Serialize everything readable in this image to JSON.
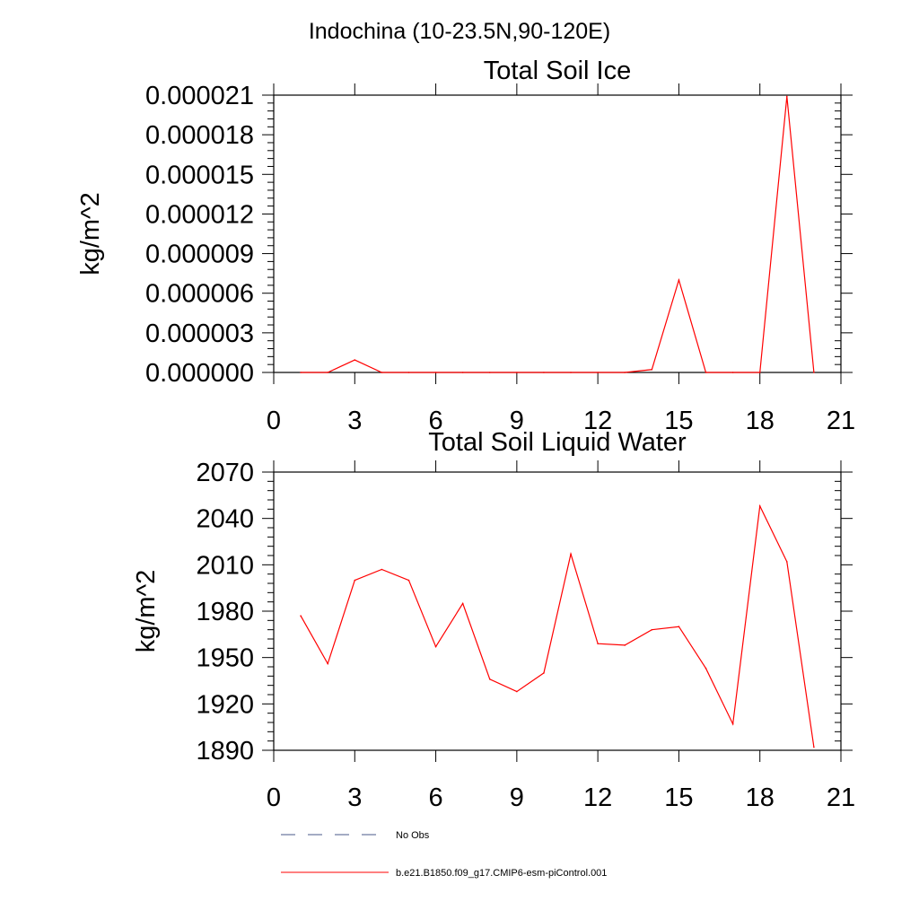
{
  "figure_title": "Indochina (10-23.5N,90-120E)",
  "chart_data": [
    {
      "type": "line",
      "title": "Total Soil Ice",
      "xlabel": "",
      "ylabel": "kg/m^2",
      "xlim": [
        0,
        21
      ],
      "ylim": [
        0,
        2.1e-05
      ],
      "xticks": [
        0,
        3,
        6,
        9,
        12,
        15,
        18,
        21
      ],
      "xtick_labels": [
        "0",
        "3",
        "6",
        "9",
        "12",
        "15",
        "18",
        "21"
      ],
      "yticks": [
        0,
        3e-06,
        6e-06,
        9e-06,
        1.2e-05,
        1.5e-05,
        1.8e-05,
        2.1e-05
      ],
      "ytick_labels": [
        "0.000000",
        "0.000003",
        "0.000006",
        "0.000009",
        "0.000012",
        "0.000015",
        "0.000018",
        "0.000021"
      ],
      "grid": false,
      "series": [
        {
          "name": "b.e21.B1850.f09_g17.CMIP6-esm-piControl.001",
          "color": "#ff0000",
          "x": [
            1,
            2,
            3,
            4,
            5,
            6,
            7,
            8,
            9,
            10,
            11,
            12,
            13,
            14,
            15,
            16,
            17,
            18,
            19,
            20
          ],
          "values": [
            0,
            0,
            9.5e-07,
            0,
            0,
            0,
            0,
            0,
            0,
            0,
            0,
            0,
            0,
            2.2e-07,
            7e-06,
            0,
            0,
            0,
            2.09e-05,
            0
          ]
        }
      ]
    },
    {
      "type": "line",
      "title": "Total Soil Liquid Water",
      "xlabel": "",
      "ylabel": "kg/m^2",
      "xlim": [
        0,
        21
      ],
      "ylim": [
        1890,
        2070
      ],
      "xticks": [
        0,
        3,
        6,
        9,
        12,
        15,
        18,
        21
      ],
      "xtick_labels": [
        "0",
        "3",
        "6",
        "9",
        "12",
        "15",
        "18",
        "21"
      ],
      "yticks": [
        1890,
        1920,
        1950,
        1980,
        2010,
        2040,
        2070
      ],
      "ytick_labels": [
        "1890",
        "1920",
        "1950",
        "1980",
        "2010",
        "2040",
        "2070"
      ],
      "grid": false,
      "series": [
        {
          "name": "b.e21.B1850.f09_g17.CMIP6-esm-piControl.001",
          "color": "#ff0000",
          "x": [
            1,
            2,
            3,
            4,
            5,
            6,
            7,
            8,
            9,
            10,
            11,
            12,
            13,
            14,
            15,
            16,
            17,
            18,
            19,
            20
          ],
          "values": [
            1977,
            1946,
            2000,
            2007,
            2000,
            1957,
            1985,
            1936,
            1928,
            1940,
            2017,
            1959,
            1958,
            1968,
            1970,
            1943,
            1907,
            2048,
            2012,
            1892
          ]
        }
      ]
    }
  ],
  "legend": {
    "placement": "bottom-left",
    "items": [
      {
        "label": "No Obs",
        "color": "#4a5a8a",
        "style": "dashed"
      },
      {
        "label": "b.e21.B1850.f09_g17.CMIP6-esm-piControl.001",
        "color": "#ff0000",
        "style": "solid"
      }
    ]
  }
}
